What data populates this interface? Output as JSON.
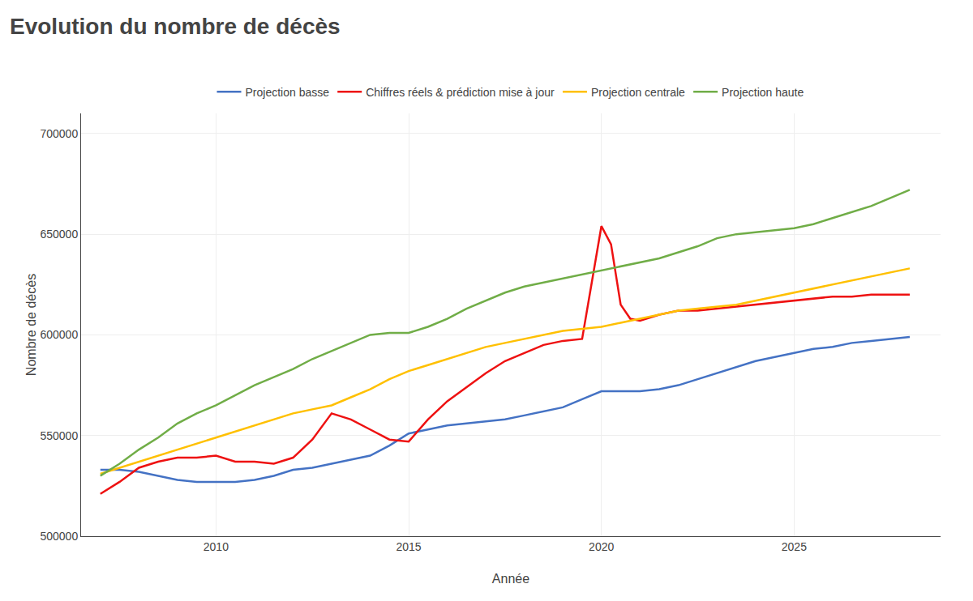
{
  "chart_data": {
    "type": "line",
    "title": "Evolution du nombre de décès",
    "xlabel": "Année",
    "ylabel": "Nombre de décès",
    "xlim": [
      2006.5,
      2028.8
    ],
    "xticks": [
      2010,
      2015,
      2020,
      2025
    ],
    "ylim": [
      500000,
      710000
    ],
    "yticks": [
      500000,
      550000,
      600000,
      650000,
      700000
    ],
    "grid": true,
    "legend": "top",
    "series": [
      {
        "name": "Projection basse",
        "color": "#4472C4",
        "x": [
          2007.0,
          2007.5,
          2008.0,
          2008.5,
          2009.0,
          2009.5,
          2010.0,
          2010.5,
          2011.0,
          2011.5,
          2012.0,
          2012.5,
          2013.0,
          2013.5,
          2014.0,
          2014.5,
          2015.0,
          2015.5,
          2016.0,
          2016.5,
          2017.0,
          2017.5,
          2018.0,
          2018.5,
          2019.0,
          2019.5,
          2020.0,
          2020.5,
          2021.0,
          2021.5,
          2022.0,
          2022.5,
          2023.0,
          2023.5,
          2024.0,
          2024.5,
          2025.0,
          2025.5,
          2026.0,
          2026.5,
          2027.0,
          2027.5,
          2028.0
        ],
        "values": [
          533000,
          533000,
          532000,
          530000,
          528000,
          527000,
          527000,
          527000,
          528000,
          530000,
          533000,
          534000,
          536000,
          538000,
          540000,
          545000,
          551000,
          553000,
          555000,
          556000,
          557000,
          558000,
          560000,
          562000,
          564000,
          568000,
          572000,
          572000,
          572000,
          573000,
          575000,
          578000,
          581000,
          584000,
          587000,
          589000,
          591000,
          593000,
          594000,
          596000,
          597000,
          598000,
          599000
        ]
      },
      {
        "name": "Chiffres réels & prédiction mise à jour",
        "color": "#EE1111",
        "x": [
          2007.0,
          2007.5,
          2008.0,
          2008.5,
          2009.0,
          2009.5,
          2010.0,
          2010.5,
          2011.0,
          2011.5,
          2012.0,
          2012.5,
          2013.0,
          2013.5,
          2014.0,
          2014.5,
          2015.0,
          2015.5,
          2016.0,
          2016.5,
          2017.0,
          2017.5,
          2018.0,
          2018.5,
          2019.0,
          2019.5,
          2020.0,
          2020.25,
          2020.5,
          2020.75,
          2021.0,
          2021.5,
          2022.0,
          2022.5,
          2023.0,
          2023.5,
          2024.0,
          2024.5,
          2025.0,
          2025.5,
          2026.0,
          2026.5,
          2027.0,
          2027.5,
          2028.0
        ],
        "values": [
          521000,
          527000,
          534000,
          537000,
          539000,
          539000,
          540000,
          537000,
          537000,
          536000,
          539000,
          548000,
          561000,
          558000,
          553000,
          548000,
          547000,
          558000,
          567000,
          574000,
          581000,
          587000,
          591000,
          595000,
          597000,
          598000,
          654000,
          645000,
          615000,
          608000,
          607000,
          610000,
          612000,
          612000,
          613000,
          614000,
          615000,
          616000,
          617000,
          618000,
          619000,
          619000,
          620000,
          620000,
          620000
        ]
      },
      {
        "name": "Projection centrale",
        "color": "#FFC000",
        "x": [
          2007.0,
          2007.5,
          2008.0,
          2008.5,
          2009.0,
          2009.5,
          2010.0,
          2010.5,
          2011.0,
          2011.5,
          2012.0,
          2012.5,
          2013.0,
          2013.5,
          2014.0,
          2014.5,
          2015.0,
          2015.5,
          2016.0,
          2016.5,
          2017.0,
          2017.5,
          2018.0,
          2018.5,
          2019.0,
          2019.5,
          2020.0,
          2020.5,
          2021.0,
          2021.5,
          2022.0,
          2022.5,
          2023.0,
          2023.5,
          2024.0,
          2024.5,
          2025.0,
          2025.5,
          2026.0,
          2026.5,
          2027.0,
          2027.5,
          2028.0
        ],
        "values": [
          531000,
          534000,
          537000,
          540000,
          543000,
          546000,
          549000,
          552000,
          555000,
          558000,
          561000,
          563000,
          565000,
          569000,
          573000,
          578000,
          582000,
          585000,
          588000,
          591000,
          594000,
          596000,
          598000,
          600000,
          602000,
          603000,
          604000,
          606000,
          608000,
          610000,
          612000,
          613000,
          614000,
          615000,
          617000,
          619000,
          621000,
          623000,
          625000,
          627000,
          629000,
          631000,
          633000
        ]
      },
      {
        "name": "Projection haute",
        "color": "#70AD47",
        "x": [
          2007.0,
          2007.5,
          2008.0,
          2008.5,
          2009.0,
          2009.5,
          2010.0,
          2010.5,
          2011.0,
          2011.5,
          2012.0,
          2012.5,
          2013.0,
          2013.5,
          2014.0,
          2014.5,
          2015.0,
          2015.5,
          2016.0,
          2016.5,
          2017.0,
          2017.5,
          2018.0,
          2018.5,
          2019.0,
          2019.5,
          2020.0,
          2020.5,
          2021.0,
          2021.5,
          2022.0,
          2022.5,
          2023.0,
          2023.5,
          2024.0,
          2024.5,
          2025.0,
          2025.5,
          2026.0,
          2026.5,
          2027.0,
          2027.5,
          2028.0
        ],
        "values": [
          530000,
          536000,
          543000,
          549000,
          556000,
          561000,
          565000,
          570000,
          575000,
          579000,
          583000,
          588000,
          592000,
          596000,
          600000,
          601000,
          601000,
          604000,
          608000,
          613000,
          617000,
          621000,
          624000,
          626000,
          628000,
          630000,
          632000,
          634000,
          636000,
          638000,
          641000,
          644000,
          648000,
          650000,
          651000,
          652000,
          653000,
          655000,
          658000,
          661000,
          664000,
          668000,
          672000
        ]
      }
    ]
  }
}
